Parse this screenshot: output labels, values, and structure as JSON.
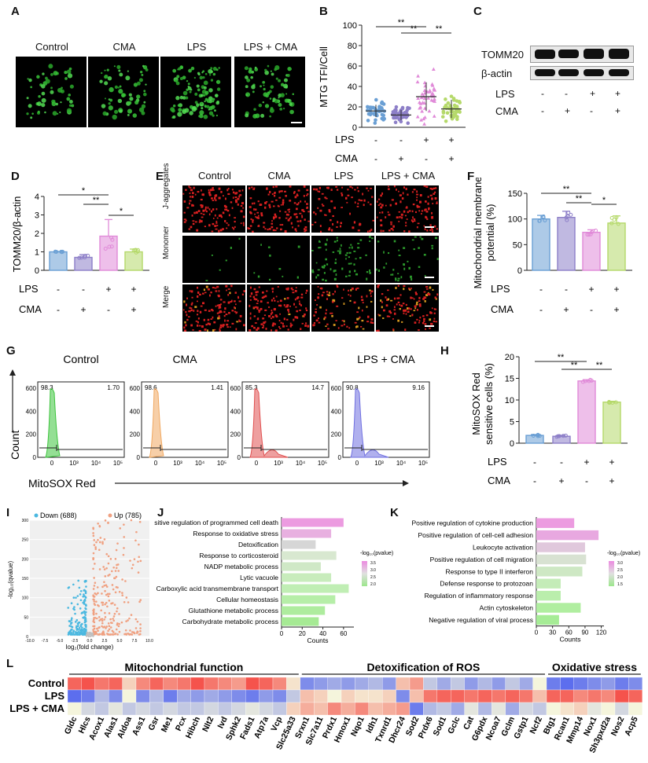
{
  "panels": {
    "A": "A",
    "B": "B",
    "C": "C",
    "D": "D",
    "E": "E",
    "F": "F",
    "G": "G",
    "H": "H",
    "I": "I",
    "J": "J",
    "K": "K",
    "L": "L"
  },
  "conditions": [
    "Control",
    "CMA",
    "LPS",
    "LPS + CMA"
  ],
  "sig": {
    "two": "**",
    "one": "*"
  },
  "rows_label": {
    "lps": "LPS",
    "cma": "CMA",
    "plus": "+",
    "minus": "-"
  },
  "panelB": {
    "ylabel": "MTG TFI/Cell",
    "chart_data": {
      "type": "scatter",
      "categories": [
        "Control",
        "CMA",
        "LPS",
        "LPS + CMA"
      ],
      "means": [
        16,
        12,
        30,
        18
      ],
      "sd": [
        6,
        5,
        14,
        9
      ],
      "ylim": [
        0,
        100
      ],
      "yticks": [
        "0",
        "20",
        "40",
        "60",
        "80",
        "100"
      ],
      "colors": [
        "#6a9fd4",
        "#8d7fc8",
        "#e08ad8",
        "#b5d96a"
      ]
    }
  },
  "panelC": {
    "protein1": "TOMM20",
    "protein2": "β-actin"
  },
  "panelD": {
    "ylabel": "TOMM20/β-actin",
    "chart_data": {
      "type": "bar",
      "categories": [
        "Control",
        "CMA",
        "LPS",
        "LPS + CMA"
      ],
      "values": [
        1.0,
        0.7,
        1.85,
        1.0
      ],
      "sd": [
        0.02,
        0.15,
        0.9,
        0.15
      ],
      "ylim": [
        0,
        4
      ],
      "yticks": [
        "0",
        "1",
        "2",
        "3",
        "4"
      ],
      "colors": [
        "#6a9fd4",
        "#8d7fc8",
        "#e08ad8",
        "#b5d96a"
      ]
    }
  },
  "panelE": {
    "rows": [
      "J-aggregates",
      "Monomer",
      "Merge"
    ]
  },
  "panelF": {
    "ylabel1": "Mitochondrial membrane",
    "ylabel2": "potential (%)",
    "chart_data": {
      "type": "bar",
      "categories": [
        "Control",
        "CMA",
        "LPS",
        "LPS + CMA"
      ],
      "values": [
        100,
        103,
        74,
        92
      ],
      "sd": [
        7,
        12,
        5,
        14
      ],
      "ylim": [
        0,
        150
      ],
      "yticks": [
        "0",
        "50",
        "100",
        "150"
      ],
      "colors": [
        "#6a9fd4",
        "#8d7fc8",
        "#e08ad8",
        "#b5d96a"
      ]
    }
  },
  "panelG": {
    "ylabel": "Count",
    "xlabel": "MitoSOX Red",
    "yticks": [
      "600",
      "400",
      "200",
      "0"
    ],
    "xticks": [
      "0",
      "10³",
      "10⁴",
      "10⁵"
    ],
    "histos": [
      {
        "title": "Control",
        "left": "98.3",
        "right": "1.70",
        "color": "#3cc43c"
      },
      {
        "title": "CMA",
        "left": "98.6",
        "right": "1.41",
        "color": "#f0a860"
      },
      {
        "title": "LPS",
        "left": "85.3",
        "right": "14.7",
        "color": "#e05050"
      },
      {
        "title": "LPS + CMA",
        "left": "90.8",
        "right": "9.16",
        "color": "#7070e0"
      }
    ]
  },
  "panelH": {
    "ylabel1": "MitoSOX Red",
    "ylabel2": "sensitive cells (%)",
    "chart_data": {
      "type": "bar",
      "categories": [
        "Control",
        "CMA",
        "LPS",
        "LPS + CMA"
      ],
      "values": [
        1.8,
        1.6,
        14.4,
        9.5
      ],
      "sd": [
        0.2,
        0.2,
        0.3,
        0.2
      ],
      "ylim": [
        0,
        20
      ],
      "yticks": [
        "0",
        "5",
        "10",
        "15",
        "20"
      ],
      "colors": [
        "#6a9fd4",
        "#8d7fc8",
        "#e08ad8",
        "#b5d96a"
      ]
    }
  },
  "panelI": {
    "down": "Down (688)",
    "up": "Up (785)",
    "ylabel": "-log₁₀(qvalue)",
    "xlabel": "log₂(fold change)",
    "yticks": [
      "0",
      "50",
      "100",
      "150",
      "200",
      "250",
      "300"
    ],
    "xticks": [
      "-10.0",
      "-7.5",
      "-5.0",
      "-2.5",
      "0.0",
      "2.5",
      "5.0",
      "7.5",
      "10.0"
    ]
  },
  "panelJ": {
    "legend": "-log₁₀(pvalue)",
    "legend_ticks": [
      "3.5",
      "3.0",
      "2.5",
      "2.0"
    ],
    "xlabel": "Counts",
    "xticks": [
      "0",
      "20",
      "40",
      "60"
    ],
    "chart_data": {
      "type": "bar",
      "terms": [
        "Positive regulation of programmed cell death",
        "Response to oxidative stress",
        "Detoxification",
        "Response to corticosteroid",
        "NADP metabolic process",
        "Lytic vacuole",
        "Carboxylic acid transmembrane transport",
        "Cellular homeostasis",
        "Glutathione metabolic process",
        "Carbohydrate metabolic process"
      ],
      "values": [
        60,
        48,
        33,
        53,
        38,
        48,
        65,
        52,
        42,
        36
      ],
      "colors": [
        "#ec9be0",
        "#e8b0e0",
        "#d6d6d6",
        "#d8e8d0",
        "#cfe8c6",
        "#c8ecbc",
        "#c0eeb4",
        "#b6eea8",
        "#aeec9e",
        "#a6ea94"
      ],
      "xlim": [
        0,
        70
      ]
    }
  },
  "panelK": {
    "legend": "-log₁₀(pvalue)",
    "legend_ticks": [
      "3.0",
      "2.5",
      "2.0",
      "1.5"
    ],
    "xlabel": "Counts",
    "xticks": [
      "0",
      "30",
      "60",
      "90",
      "120"
    ],
    "chart_data": {
      "type": "bar",
      "terms": [
        "Positive regulation of cytokine production",
        "Positive regulation of cell-cell adhesion",
        "Leukocyte activation",
        "Positive regulation of cell migration",
        "Response to type II interferon",
        "Defense response to protozoan",
        "Regulation of inflammatory response",
        "Actin cytoskeleton",
        "Negative regulation of viral process"
      ],
      "values": [
        70,
        115,
        90,
        92,
        85,
        45,
        45,
        82,
        42
      ],
      "colors": [
        "#ec9be0",
        "#e8a8e0",
        "#e0c8dc",
        "#d8e2d2",
        "#cee8c4",
        "#c4ecb8",
        "#baeeac",
        "#b0eea0",
        "#a6ec96"
      ],
      "xlim": [
        0,
        125
      ]
    }
  },
  "panelL": {
    "groups": [
      "Mitochondrial function",
      "Detoxification of ROS",
      "Oxidative stress"
    ],
    "rows": [
      "Control",
      "LPS",
      "LPS + CMA"
    ],
    "genes": [
      "Gldc",
      "Hlcs",
      "Acox1",
      "Alas1",
      "Aldoa",
      "Ass1",
      "Gsr",
      "Me1",
      "Pcx",
      "Hibch",
      "Nlt2",
      "Ivd",
      "Sphk2",
      "Fads1",
      "Atp7a",
      "Vcp",
      "Slc25a33",
      "Srxn1",
      "Slc7a11",
      "Prdx1",
      "Hmox1",
      "Nqo1",
      "Idh1",
      "Txnrd1",
      "Dhcr24",
      "Sod2",
      "Prdx6",
      "Sod1",
      "Gclc",
      "Cat",
      "G6pdx",
      "Ncoa7",
      "Gclm",
      "Gstp1",
      "Ncf2",
      "Btg1",
      "Rcan1",
      "Mmp14",
      "Nox1",
      "Sh3pxd2a",
      "Nos2",
      "Acp5"
    ],
    "heatmap": [
      [
        0.8,
        0.9,
        0.7,
        0.8,
        0.2,
        0.6,
        0.8,
        0.6,
        0.7,
        0.9,
        0.7,
        0.6,
        0.5,
        0.9,
        0.8,
        0.6,
        0.1,
        -0.7,
        -0.6,
        -0.5,
        -0.6,
        -0.5,
        -0.4,
        -0.6,
        0.3,
        0.5,
        -0.3,
        -0.5,
        -0.3,
        -0.6,
        -0.4,
        -0.6,
        -0.3,
        -0.5,
        0.0,
        -0.8,
        -0.9,
        -0.8,
        -0.7,
        -0.6,
        -0.8,
        -0.7
      ],
      [
        -0.9,
        -0.8,
        -0.4,
        -0.7,
        0.0,
        -0.7,
        -0.4,
        -0.8,
        -0.5,
        -0.6,
        -0.5,
        -0.6,
        -0.7,
        -0.8,
        -0.6,
        -0.7,
        -0.3,
        0.3,
        0.2,
        0.0,
        0.2,
        0.1,
        0.1,
        0.2,
        -0.7,
        0.3,
        0.7,
        0.8,
        0.8,
        0.7,
        0.8,
        0.7,
        0.8,
        0.7,
        0.3,
        0.8,
        0.8,
        0.6,
        0.7,
        0.6,
        0.9,
        0.8
      ],
      [
        0.0,
        -0.2,
        -0.3,
        -0.1,
        -0.3,
        -0.2,
        -0.3,
        -0.2,
        -0.3,
        -0.3,
        -0.2,
        -0.3,
        -0.2,
        -0.1,
        -0.2,
        -0.3,
        0.2,
        0.4,
        0.3,
        0.6,
        0.4,
        0.6,
        0.3,
        0.4,
        0.5,
        -0.8,
        -0.4,
        -0.3,
        -0.5,
        -0.1,
        -0.4,
        -0.1,
        -0.5,
        -0.2,
        -0.3,
        0.0,
        0.1,
        0.2,
        -0.1,
        0.0,
        -0.2,
        0.0
      ]
    ]
  }
}
